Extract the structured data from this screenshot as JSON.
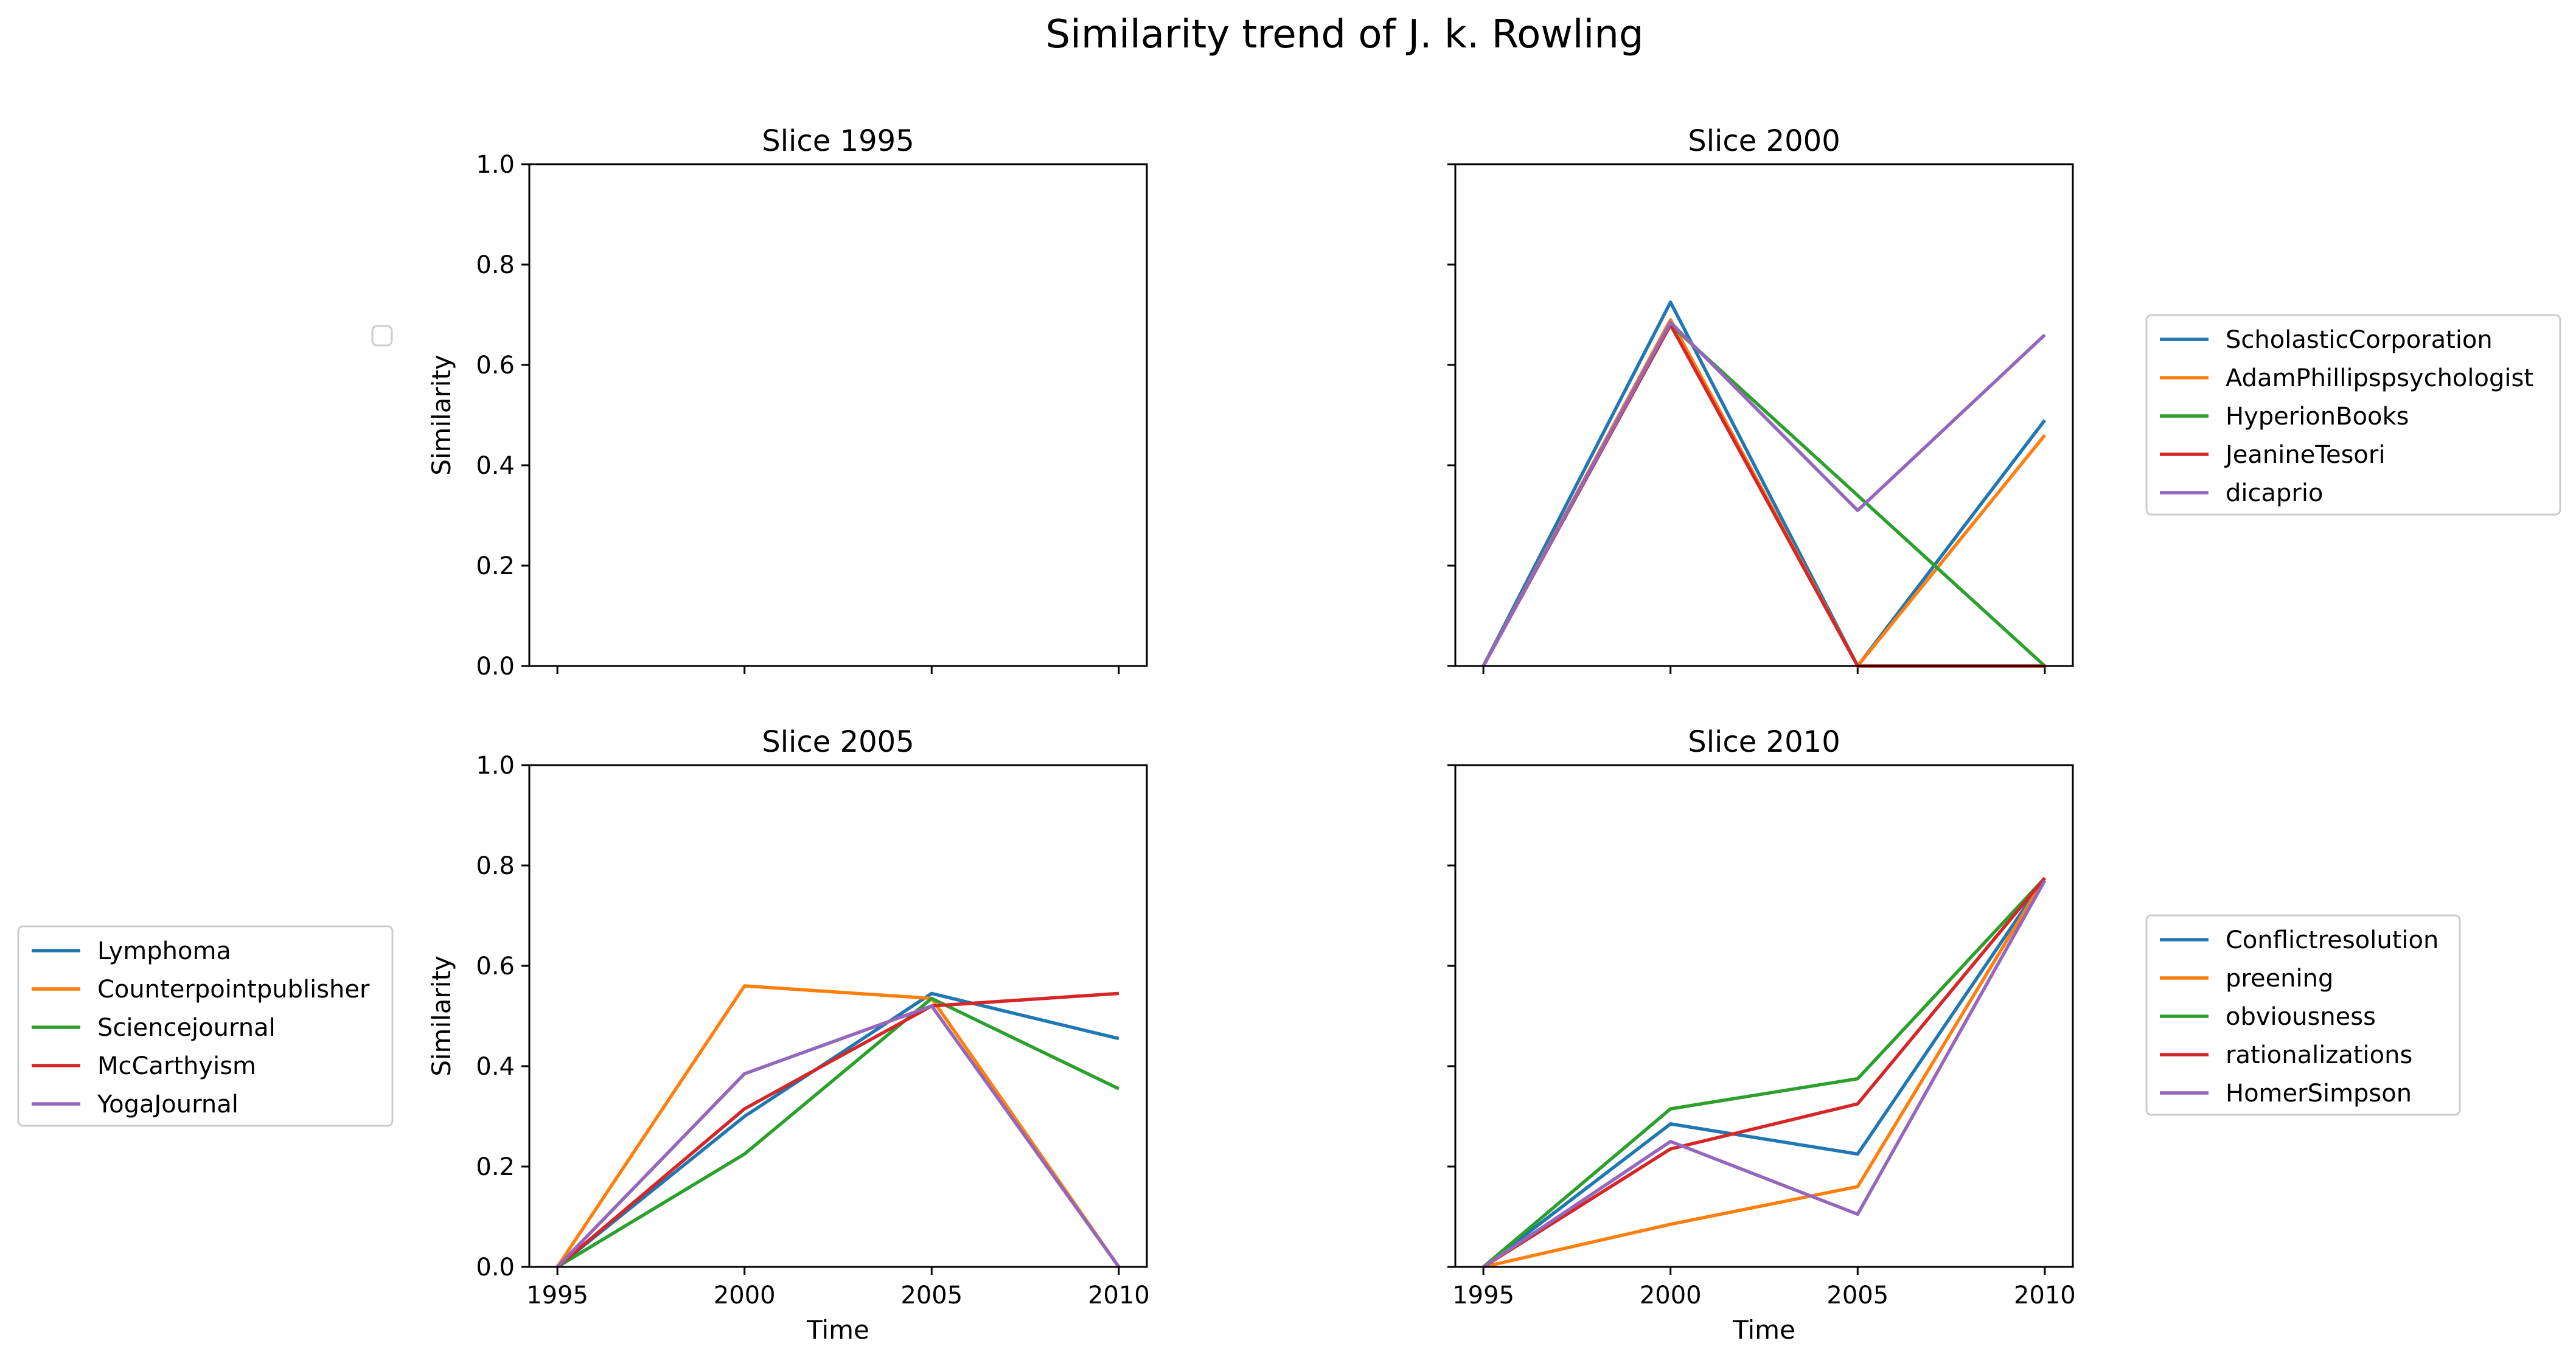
{
  "figure": {
    "title": "Similarity trend of J. k. Rowling"
  },
  "chart_data": [
    {
      "type": "line",
      "title": "Slice 1995",
      "xlabel": "",
      "ylabel": "Similarity",
      "x": [
        1995,
        2000,
        2005,
        2010
      ],
      "xlim": [
        1995,
        2010
      ],
      "ylim": [
        0,
        1
      ],
      "yticks": [
        "0.0",
        "0.2",
        "0.4",
        "0.6",
        "0.8",
        "1.0"
      ],
      "xticks": [],
      "legend": "empty, left of panel",
      "series": []
    },
    {
      "type": "line",
      "title": "Slice 2000",
      "xlabel": "",
      "ylabel": "",
      "x": [
        1995,
        2000,
        2005,
        2010
      ],
      "xlim": [
        1995,
        2010
      ],
      "ylim": [
        0,
        1
      ],
      "yticks": [],
      "xticks": [],
      "legend": "right",
      "series": [
        {
          "name": "ScholasticCorporation",
          "color": "#1f77b4",
          "values": [
            0,
            0.725,
            0.0,
            0.49
          ]
        },
        {
          "name": "AdamPhillipspsychologist",
          "color": "#ff7f0e",
          "values": [
            0,
            0.69,
            0.0,
            0.46
          ]
        },
        {
          "name": "HyperionBooks",
          "color": "#2ca02c",
          "values": [
            0,
            0.68,
            0.34,
            0.0
          ]
        },
        {
          "name": "JeanineTesori",
          "color": "#d62728",
          "values": [
            0,
            0.68,
            0.0,
            0.0
          ]
        },
        {
          "name": "dicaprio",
          "color": "#9467bd",
          "values": [
            0,
            0.685,
            0.31,
            0.66
          ]
        }
      ]
    },
    {
      "type": "line",
      "title": "Slice 2005",
      "xlabel": "Time",
      "ylabel": "Similarity",
      "x": [
        1995,
        2000,
        2005,
        2010
      ],
      "xlim": [
        1995,
        2010
      ],
      "ylim": [
        0,
        1
      ],
      "yticks": [
        "0.0",
        "0.2",
        "0.4",
        "0.6",
        "0.8",
        "1.0"
      ],
      "xticks": [
        "1995",
        "2000",
        "2005",
        "2010"
      ],
      "legend": "left",
      "series": [
        {
          "name": "Lymphoma",
          "color": "#1f77b4",
          "values": [
            0,
            0.3,
            0.545,
            0.455
          ]
        },
        {
          "name": "Counterpointpublisher",
          "color": "#ff7f0e",
          "values": [
            0,
            0.56,
            0.535,
            0.0
          ]
        },
        {
          "name": "Sciencejournal",
          "color": "#2ca02c",
          "values": [
            0,
            0.225,
            0.535,
            0.355
          ]
        },
        {
          "name": "McCarthyism",
          "color": "#d62728",
          "values": [
            0,
            0.315,
            0.52,
            0.545
          ]
        },
        {
          "name": "YogaJournal",
          "color": "#9467bd",
          "values": [
            0,
            0.385,
            0.52,
            0.0
          ]
        }
      ]
    },
    {
      "type": "line",
      "title": "Slice 2010",
      "xlabel": "Time",
      "ylabel": "",
      "x": [
        1995,
        2000,
        2005,
        2010
      ],
      "xlim": [
        1995,
        2010
      ],
      "ylim": [
        0,
        1
      ],
      "yticks": [],
      "xticks": [
        "1995",
        "2000",
        "2005",
        "2010"
      ],
      "legend": "right",
      "series": [
        {
          "name": "Conflictresolution",
          "color": "#1f77b4",
          "values": [
            0,
            0.285,
            0.225,
            0.775
          ]
        },
        {
          "name": "preening",
          "color": "#ff7f0e",
          "values": [
            0,
            0.085,
            0.16,
            0.775
          ]
        },
        {
          "name": "obviousness",
          "color": "#2ca02c",
          "values": [
            0,
            0.315,
            0.375,
            0.775
          ]
        },
        {
          "name": "rationalizations",
          "color": "#d62728",
          "values": [
            0,
            0.235,
            0.325,
            0.775
          ]
        },
        {
          "name": "HomerSimpson",
          "color": "#9467bd",
          "values": [
            0,
            0.25,
            0.105,
            0.77
          ]
        }
      ]
    }
  ]
}
